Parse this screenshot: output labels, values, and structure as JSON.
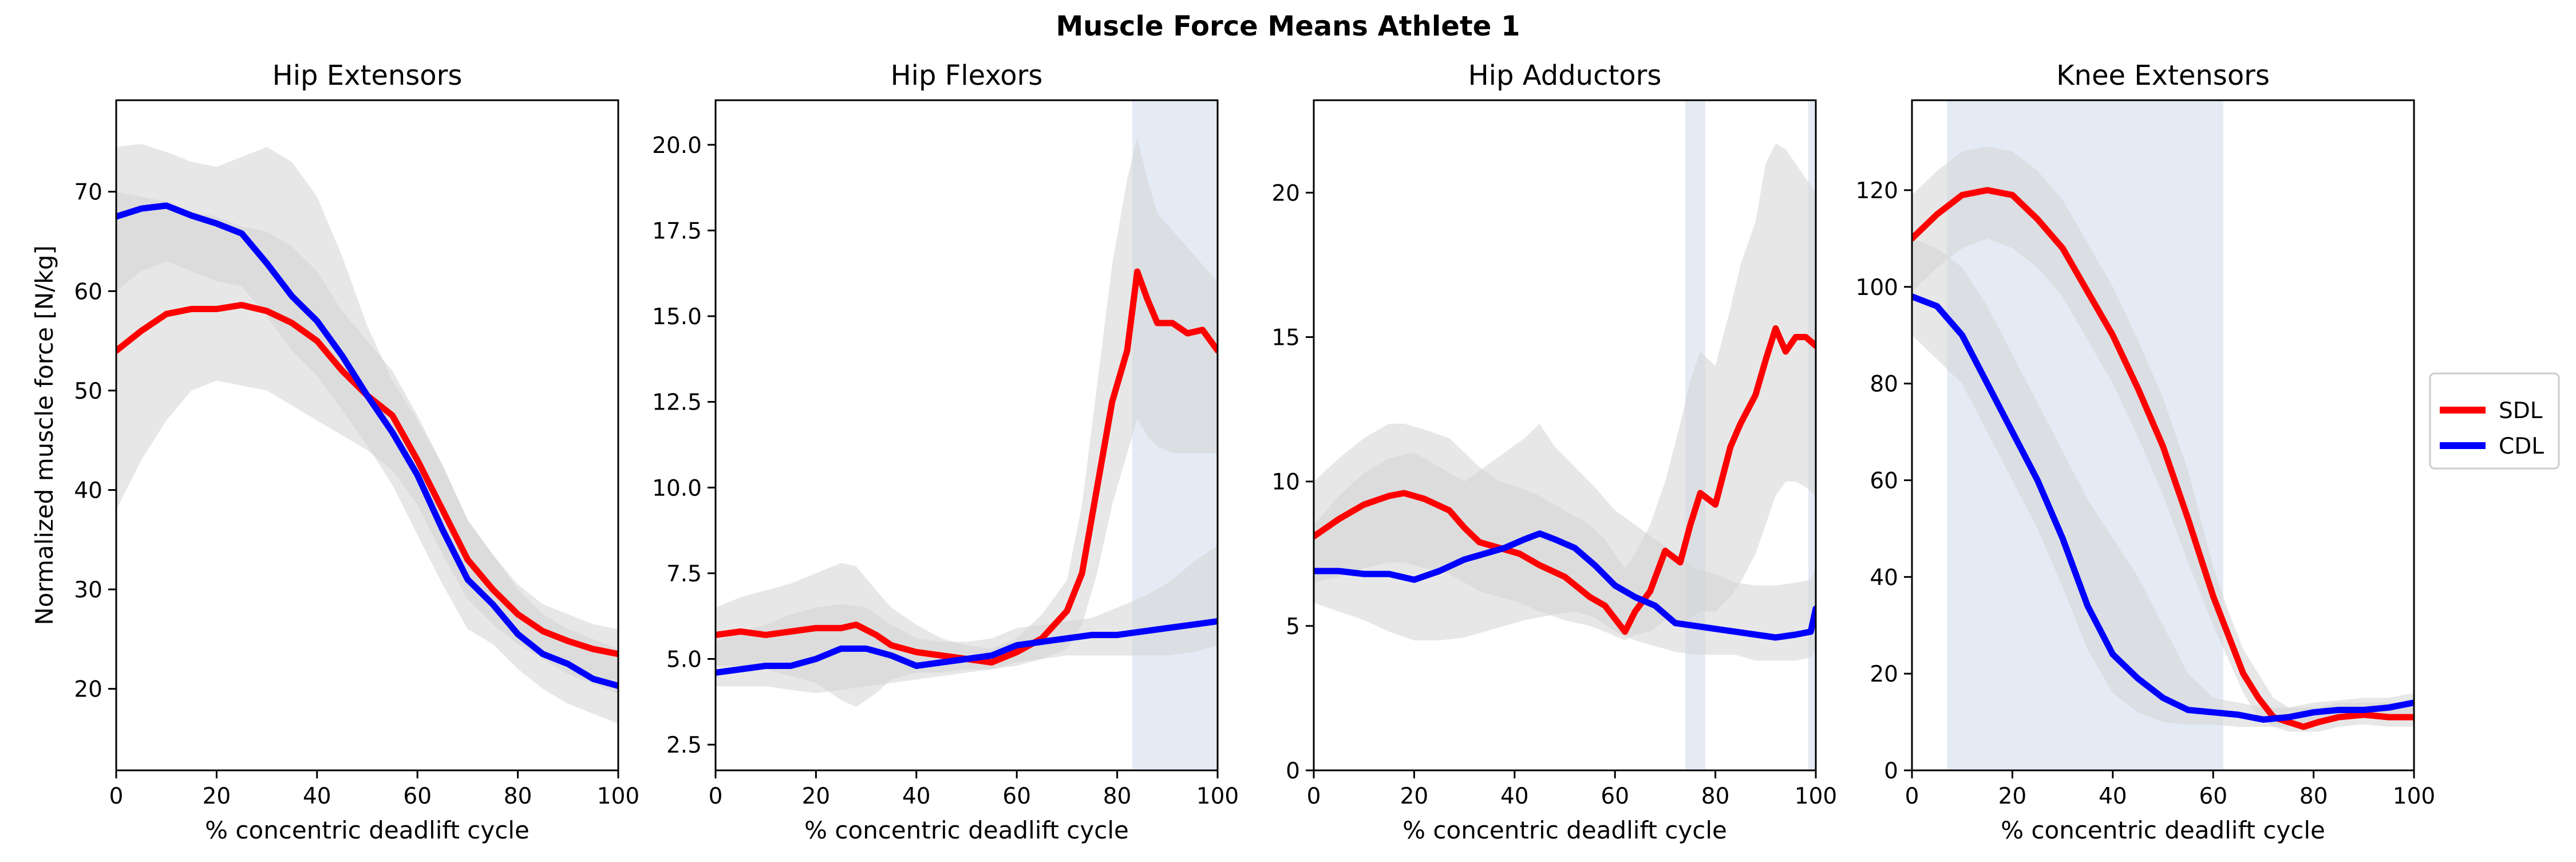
{
  "figure": {
    "title": "Muscle Force Means Athlete 1"
  },
  "legend": {
    "placement": "right",
    "entries": [
      {
        "label": "SDL",
        "color": "#ff0000"
      },
      {
        "label": "CDL",
        "color": "#0000ff"
      }
    ]
  },
  "colors": {
    "sdl": "#ff0000",
    "cdl": "#0000ff",
    "sd_band": "#d3d3d3",
    "shade": "#c4d2e6"
  },
  "chart_data": [
    {
      "type": "line",
      "title": "Hip Extensors",
      "xlabel": "% concentric deadlift cycle",
      "ylabel": "Normalized muscle force [N/kg]",
      "xlim": [
        0,
        100
      ],
      "ylim": [
        11.8,
        79.2
      ],
      "xticks": [
        0,
        20,
        40,
        60,
        80,
        100
      ],
      "yticks": [
        20,
        30,
        40,
        50,
        60,
        70
      ],
      "shaded_x": [],
      "series": [
        {
          "name": "SDL",
          "x": [
            0,
            5,
            10,
            15,
            20,
            25,
            30,
            35,
            40,
            45,
            50,
            55,
            60,
            65,
            70,
            75,
            80,
            85,
            90,
            95,
            100
          ],
          "y": [
            54,
            56,
            57.7,
            58.2,
            58.2,
            58.6,
            58,
            56.8,
            55,
            52,
            49.5,
            47.5,
            43,
            38,
            33,
            30,
            27.5,
            25.8,
            24.8,
            24,
            23.5
          ],
          "lower": [
            38,
            43,
            47,
            50,
            51,
            50.5,
            50,
            48.5,
            47,
            45.5,
            44,
            42,
            38.5,
            33.5,
            29,
            26.5,
            24.5,
            23,
            21.5,
            20.5,
            19.5
          ],
          "upper": [
            70,
            69.5,
            69,
            68,
            67.5,
            66.5,
            66,
            64.5,
            62,
            58,
            55,
            52,
            47.5,
            42.5,
            37,
            33.5,
            30.5,
            28.5,
            27.5,
            26.5,
            26
          ]
        },
        {
          "name": "CDL",
          "x": [
            0,
            5,
            10,
            15,
            20,
            25,
            30,
            35,
            40,
            45,
            50,
            55,
            60,
            65,
            70,
            75,
            80,
            85,
            90,
            95,
            100
          ],
          "y": [
            67.5,
            68.3,
            68.6,
            67.6,
            66.8,
            65.8,
            62.8,
            59.5,
            57,
            53.5,
            49.5,
            45.8,
            41.5,
            36,
            31,
            28.5,
            25.5,
            23.5,
            22.5,
            21,
            20.3
          ],
          "lower": [
            60,
            62,
            63,
            62,
            61,
            60.5,
            57.5,
            54,
            51.5,
            48,
            44.5,
            40.5,
            35.5,
            30.5,
            26,
            24.5,
            22,
            20,
            18.5,
            17.5,
            16.5
          ],
          "upper": [
            74.5,
            74.8,
            74,
            73,
            72.5,
            73.5,
            74.5,
            73,
            69.5,
            63.5,
            56.5,
            51,
            47,
            42.5,
            37,
            33.5,
            30,
            27.5,
            26,
            25,
            24
          ]
        }
      ]
    },
    {
      "type": "line",
      "title": "Hip Flexors",
      "xlabel": "% concentric deadlift cycle",
      "ylabel": "",
      "xlim": [
        0,
        100
      ],
      "ylim": [
        1.75,
        21.3
      ],
      "xticks": [
        0,
        20,
        40,
        60,
        80,
        100
      ],
      "yticks": [
        2.5,
        5.0,
        7.5,
        10.0,
        12.5,
        15.0,
        17.5,
        20.0
      ],
      "ytick_labels": [
        "2.5",
        "5.0",
        "7.5",
        "10.0",
        "12.5",
        "15.0",
        "17.5",
        "20.0"
      ],
      "shaded_x": [
        [
          83,
          100
        ]
      ],
      "series": [
        {
          "name": "SDL",
          "x": [
            0,
            5,
            10,
            15,
            20,
            25,
            28,
            32,
            35,
            40,
            45,
            50,
            55,
            60,
            65,
            70,
            73,
            76,
            79,
            82,
            84,
            86,
            88,
            91,
            94,
            97,
            100
          ],
          "y": [
            5.7,
            5.8,
            5.7,
            5.8,
            5.9,
            5.9,
            6.0,
            5.7,
            5.4,
            5.2,
            5.1,
            5.0,
            4.9,
            5.2,
            5.6,
            6.4,
            7.5,
            10.0,
            12.5,
            14.0,
            16.3,
            15.5,
            14.8,
            14.8,
            14.5,
            14.6,
            14.0
          ],
          "lower": [
            4.8,
            4.8,
            4.7,
            4.5,
            4.3,
            3.8,
            3.6,
            4.0,
            4.4,
            4.6,
            4.6,
            4.7,
            4.7,
            4.8,
            5.0,
            5.3,
            6.0,
            7.5,
            9.5,
            11.0,
            12.0,
            11.5,
            11.2,
            11.0,
            11.0,
            11.0,
            11.0
          ],
          "upper": [
            6.5,
            6.8,
            7.0,
            7.2,
            7.5,
            7.8,
            7.7,
            7.0,
            6.5,
            6.0,
            5.6,
            5.4,
            5.3,
            5.6,
            6.3,
            7.3,
            9.5,
            13.0,
            16.5,
            19.0,
            20.2,
            19.0,
            18.0,
            17.5,
            17.0,
            16.5,
            16.0
          ]
        },
        {
          "name": "CDL",
          "x": [
            0,
            5,
            10,
            15,
            20,
            25,
            30,
            35,
            40,
            45,
            50,
            55,
            60,
            65,
            70,
            75,
            80,
            85,
            90,
            95,
            100
          ],
          "y": [
            4.6,
            4.7,
            4.8,
            4.8,
            5.0,
            5.3,
            5.3,
            5.1,
            4.8,
            4.9,
            5.0,
            5.1,
            5.4,
            5.5,
            5.6,
            5.7,
            5.7,
            5.8,
            5.9,
            6.0,
            6.1
          ],
          "lower": [
            4.2,
            4.2,
            4.2,
            4.1,
            4.0,
            4.1,
            4.2,
            4.3,
            4.4,
            4.5,
            4.6,
            4.7,
            4.9,
            5.0,
            5.1,
            5.1,
            5.1,
            5.1,
            5.1,
            5.2,
            5.4
          ],
          "upper": [
            5.5,
            5.8,
            6.0,
            6.3,
            6.5,
            6.6,
            6.5,
            6.0,
            5.6,
            5.5,
            5.5,
            5.6,
            5.9,
            6.0,
            6.1,
            6.2,
            6.5,
            6.8,
            7.2,
            7.8,
            8.3
          ]
        }
      ]
    },
    {
      "type": "line",
      "title": "Hip Adductors",
      "xlabel": "% concentric deadlift cycle",
      "ylabel": "",
      "xlim": [
        0,
        100
      ],
      "ylim": [
        0,
        23.2
      ],
      "xticks": [
        0,
        20,
        40,
        60,
        80,
        100
      ],
      "yticks": [
        0,
        5,
        10,
        15,
        20
      ],
      "shaded_x": [
        [
          74,
          78
        ],
        [
          98.5,
          100
        ]
      ],
      "series": [
        {
          "name": "SDL",
          "x": [
            0,
            5,
            10,
            15,
            18,
            22,
            27,
            30,
            33,
            37,
            41,
            45,
            50,
            55,
            58,
            62,
            64,
            67,
            70,
            73,
            75,
            77,
            80,
            83,
            85,
            88,
            90,
            92,
            94,
            96,
            98,
            100
          ],
          "y": [
            8.1,
            8.7,
            9.2,
            9.5,
            9.6,
            9.4,
            9.0,
            8.4,
            7.9,
            7.7,
            7.5,
            7.1,
            6.7,
            6.0,
            5.7,
            4.8,
            5.5,
            6.2,
            7.6,
            7.2,
            8.5,
            9.6,
            9.2,
            11.2,
            12.0,
            13.0,
            14.2,
            15.3,
            14.5,
            15.0,
            15.0,
            14.7
          ],
          "lower": [
            6.5,
            6.7,
            7.0,
            7.2,
            7.2,
            7.0,
            6.8,
            6.5,
            6.2,
            6.0,
            5.8,
            5.5,
            5.2,
            5.0,
            4.8,
            4.5,
            4.7,
            4.8,
            5.2,
            5.0,
            5.3,
            5.5,
            5.5,
            6.0,
            6.5,
            7.5,
            8.5,
            9.5,
            10.0,
            10.0,
            9.8,
            9.5
          ],
          "upper": [
            10.0,
            10.8,
            11.5,
            12.0,
            12.0,
            11.8,
            11.5,
            11.0,
            10.5,
            10.0,
            9.8,
            9.5,
            9.0,
            8.5,
            8.0,
            7.0,
            7.5,
            8.5,
            10.0,
            12.0,
            13.5,
            14.5,
            14.0,
            16.0,
            17.5,
            19.0,
            21.0,
            21.7,
            21.5,
            21.0,
            20.5,
            20.0
          ]
        },
        {
          "name": "CDL",
          "x": [
            0,
            5,
            10,
            15,
            20,
            25,
            30,
            34,
            38,
            42,
            45,
            48,
            52,
            56,
            60,
            64,
            68,
            72,
            76,
            80,
            84,
            88,
            92,
            96,
            99,
            100
          ],
          "y": [
            6.9,
            6.9,
            6.8,
            6.8,
            6.6,
            6.9,
            7.3,
            7.5,
            7.7,
            8.0,
            8.2,
            8.0,
            7.7,
            7.1,
            6.4,
            6.0,
            5.7,
            5.1,
            5.0,
            4.9,
            4.8,
            4.7,
            4.6,
            4.7,
            4.8,
            5.6
          ],
          "lower": [
            5.8,
            5.5,
            5.2,
            4.8,
            4.5,
            4.5,
            4.6,
            4.8,
            5.0,
            5.2,
            5.3,
            5.4,
            5.5,
            5.3,
            4.8,
            4.5,
            4.3,
            4.1,
            4.0,
            4.0,
            4.0,
            3.8,
            3.8,
            3.8,
            3.9,
            4.2
          ],
          "upper": [
            8.5,
            9.5,
            10.3,
            10.8,
            11.0,
            10.5,
            10.0,
            10.5,
            11.0,
            11.5,
            12.0,
            11.2,
            10.5,
            9.8,
            9.0,
            8.5,
            8.0,
            7.5,
            7.0,
            6.8,
            6.5,
            6.4,
            6.4,
            6.5,
            6.6,
            7.0
          ]
        }
      ]
    },
    {
      "type": "line",
      "title": "Knee Extensors",
      "xlabel": "% concentric deadlift cycle",
      "ylabel": "",
      "xlim": [
        0,
        100
      ],
      "ylim": [
        0,
        138.6
      ],
      "xticks": [
        0,
        20,
        40,
        60,
        80,
        100
      ],
      "yticks": [
        0,
        20,
        40,
        60,
        80,
        100,
        120
      ],
      "shaded_x": [
        [
          7,
          62
        ]
      ],
      "series": [
        {
          "name": "SDL",
          "x": [
            0,
            5,
            10,
            15,
            20,
            25,
            30,
            35,
            40,
            45,
            50,
            55,
            60,
            63,
            66,
            69,
            72,
            75,
            78,
            81,
            85,
            90,
            95,
            100
          ],
          "y": [
            110,
            115,
            119,
            120,
            119,
            114,
            108,
            99,
            90,
            79,
            67,
            52,
            36,
            28,
            20,
            15,
            11,
            10,
            9,
            10,
            11,
            11.5,
            11,
            11
          ],
          "lower": [
            99,
            104,
            108,
            110,
            108,
            104,
            98,
            89,
            80,
            69,
            57,
            43,
            30,
            23,
            16,
            11,
            9,
            8,
            8,
            8,
            9,
            9.5,
            9,
            9
          ],
          "upper": [
            119,
            124,
            128,
            129,
            128,
            124,
            118,
            109,
            100,
            89,
            77,
            62,
            42,
            33,
            25,
            20,
            15,
            13,
            13,
            13,
            14,
            14,
            14,
            14
          ]
        },
        {
          "name": "CDL",
          "x": [
            0,
            5,
            10,
            15,
            20,
            25,
            30,
            35,
            40,
            45,
            50,
            55,
            60,
            65,
            70,
            75,
            80,
            85,
            90,
            95,
            100
          ],
          "y": [
            98,
            96,
            90,
            80,
            70,
            60,
            48,
            34,
            24,
            19,
            15,
            12.5,
            12,
            11.5,
            10.5,
            11,
            12,
            12.5,
            12.5,
            13,
            14
          ],
          "lower": [
            90,
            85,
            80,
            70,
            60,
            50,
            38,
            25,
            16,
            12,
            10,
            9.5,
            9.5,
            9,
            9,
            9,
            10,
            10.5,
            11,
            11,
            12
          ],
          "upper": [
            110,
            108,
            104,
            96,
            86,
            76,
            66,
            56,
            48,
            40,
            30,
            20,
            15,
            14,
            13,
            13,
            14,
            14.5,
            15,
            15,
            16
          ]
        }
      ]
    }
  ]
}
